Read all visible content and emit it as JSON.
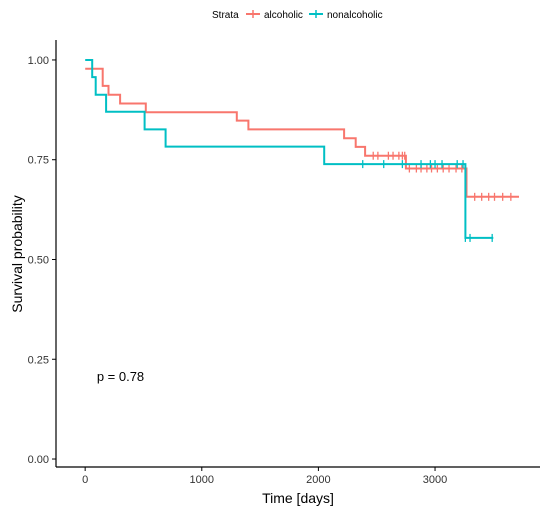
{
  "chart_data": {
    "type": "line",
    "subtype": "kaplan-meier",
    "xlabel": "Time [days]",
    "ylabel": "Survival probability",
    "xlim": [
      -250,
      3900
    ],
    "ylim": [
      -0.02,
      1.05
    ],
    "xticks": [
      0,
      1000,
      2000,
      3000
    ],
    "yticks": [
      0.0,
      0.25,
      0.5,
      0.75,
      1.0
    ],
    "ytick_labels": [
      "0.00",
      "0.25",
      "0.50",
      "0.75",
      "1.00"
    ],
    "grid": false,
    "legend": {
      "title": "Strata",
      "position": "top",
      "entries": [
        "alcoholic",
        "nonalcoholic"
      ]
    },
    "annotation": "p = 0.78",
    "annotation_pos": [
      100,
      0.195
    ],
    "series": [
      {
        "name": "alcoholic",
        "color": "#F8766D",
        "steps": [
          [
            0,
            0.978
          ],
          [
            60,
            0.978
          ],
          [
            60,
            0.978
          ],
          [
            150,
            0.978
          ],
          [
            150,
            0.935
          ],
          [
            200,
            0.935
          ],
          [
            200,
            0.913
          ],
          [
            300,
            0.913
          ],
          [
            300,
            0.891
          ],
          [
            520,
            0.891
          ],
          [
            520,
            0.869
          ],
          [
            1300,
            0.869
          ],
          [
            1300,
            0.848
          ],
          [
            1400,
            0.848
          ],
          [
            1400,
            0.826
          ],
          [
            2220,
            0.826
          ],
          [
            2220,
            0.804
          ],
          [
            2320,
            0.804
          ],
          [
            2320,
            0.782
          ],
          [
            2400,
            0.782
          ],
          [
            2400,
            0.76
          ],
          [
            2750,
            0.76
          ],
          [
            2750,
            0.728
          ],
          [
            3270,
            0.728
          ],
          [
            3270,
            0.657
          ],
          [
            3720,
            0.657
          ]
        ],
        "censors": [
          [
            2470,
            0.76
          ],
          [
            2510,
            0.76
          ],
          [
            2600,
            0.76
          ],
          [
            2640,
            0.76
          ],
          [
            2690,
            0.76
          ],
          [
            2720,
            0.76
          ],
          [
            2740,
            0.76
          ],
          [
            2780,
            0.728
          ],
          [
            2840,
            0.728
          ],
          [
            2880,
            0.728
          ],
          [
            2930,
            0.728
          ],
          [
            2970,
            0.728
          ],
          [
            3020,
            0.728
          ],
          [
            3070,
            0.728
          ],
          [
            3120,
            0.728
          ],
          [
            3180,
            0.728
          ],
          [
            3230,
            0.728
          ],
          [
            3340,
            0.657
          ],
          [
            3400,
            0.657
          ],
          [
            3460,
            0.657
          ],
          [
            3510,
            0.657
          ],
          [
            3580,
            0.657
          ],
          [
            3650,
            0.657
          ]
        ]
      },
      {
        "name": "nonalcoholic",
        "color": "#00BFC4",
        "steps": [
          [
            0,
            1.0
          ],
          [
            60,
            1.0
          ],
          [
            60,
            0.957
          ],
          [
            90,
            0.957
          ],
          [
            90,
            0.913
          ],
          [
            180,
            0.913
          ],
          [
            180,
            0.87
          ],
          [
            510,
            0.87
          ],
          [
            510,
            0.826
          ],
          [
            690,
            0.826
          ],
          [
            690,
            0.783
          ],
          [
            2050,
            0.783
          ],
          [
            2050,
            0.739
          ],
          [
            3260,
            0.739
          ],
          [
            3260,
            0.554
          ],
          [
            3500,
            0.554
          ]
        ],
        "censors": [
          [
            2380,
            0.739
          ],
          [
            2560,
            0.739
          ],
          [
            2720,
            0.739
          ],
          [
            2880,
            0.739
          ],
          [
            2960,
            0.739
          ],
          [
            3000,
            0.739
          ],
          [
            3060,
            0.739
          ],
          [
            3190,
            0.739
          ],
          [
            3240,
            0.739
          ],
          [
            3260,
            0.554
          ],
          [
            3300,
            0.554
          ],
          [
            3490,
            0.554
          ]
        ]
      }
    ]
  }
}
